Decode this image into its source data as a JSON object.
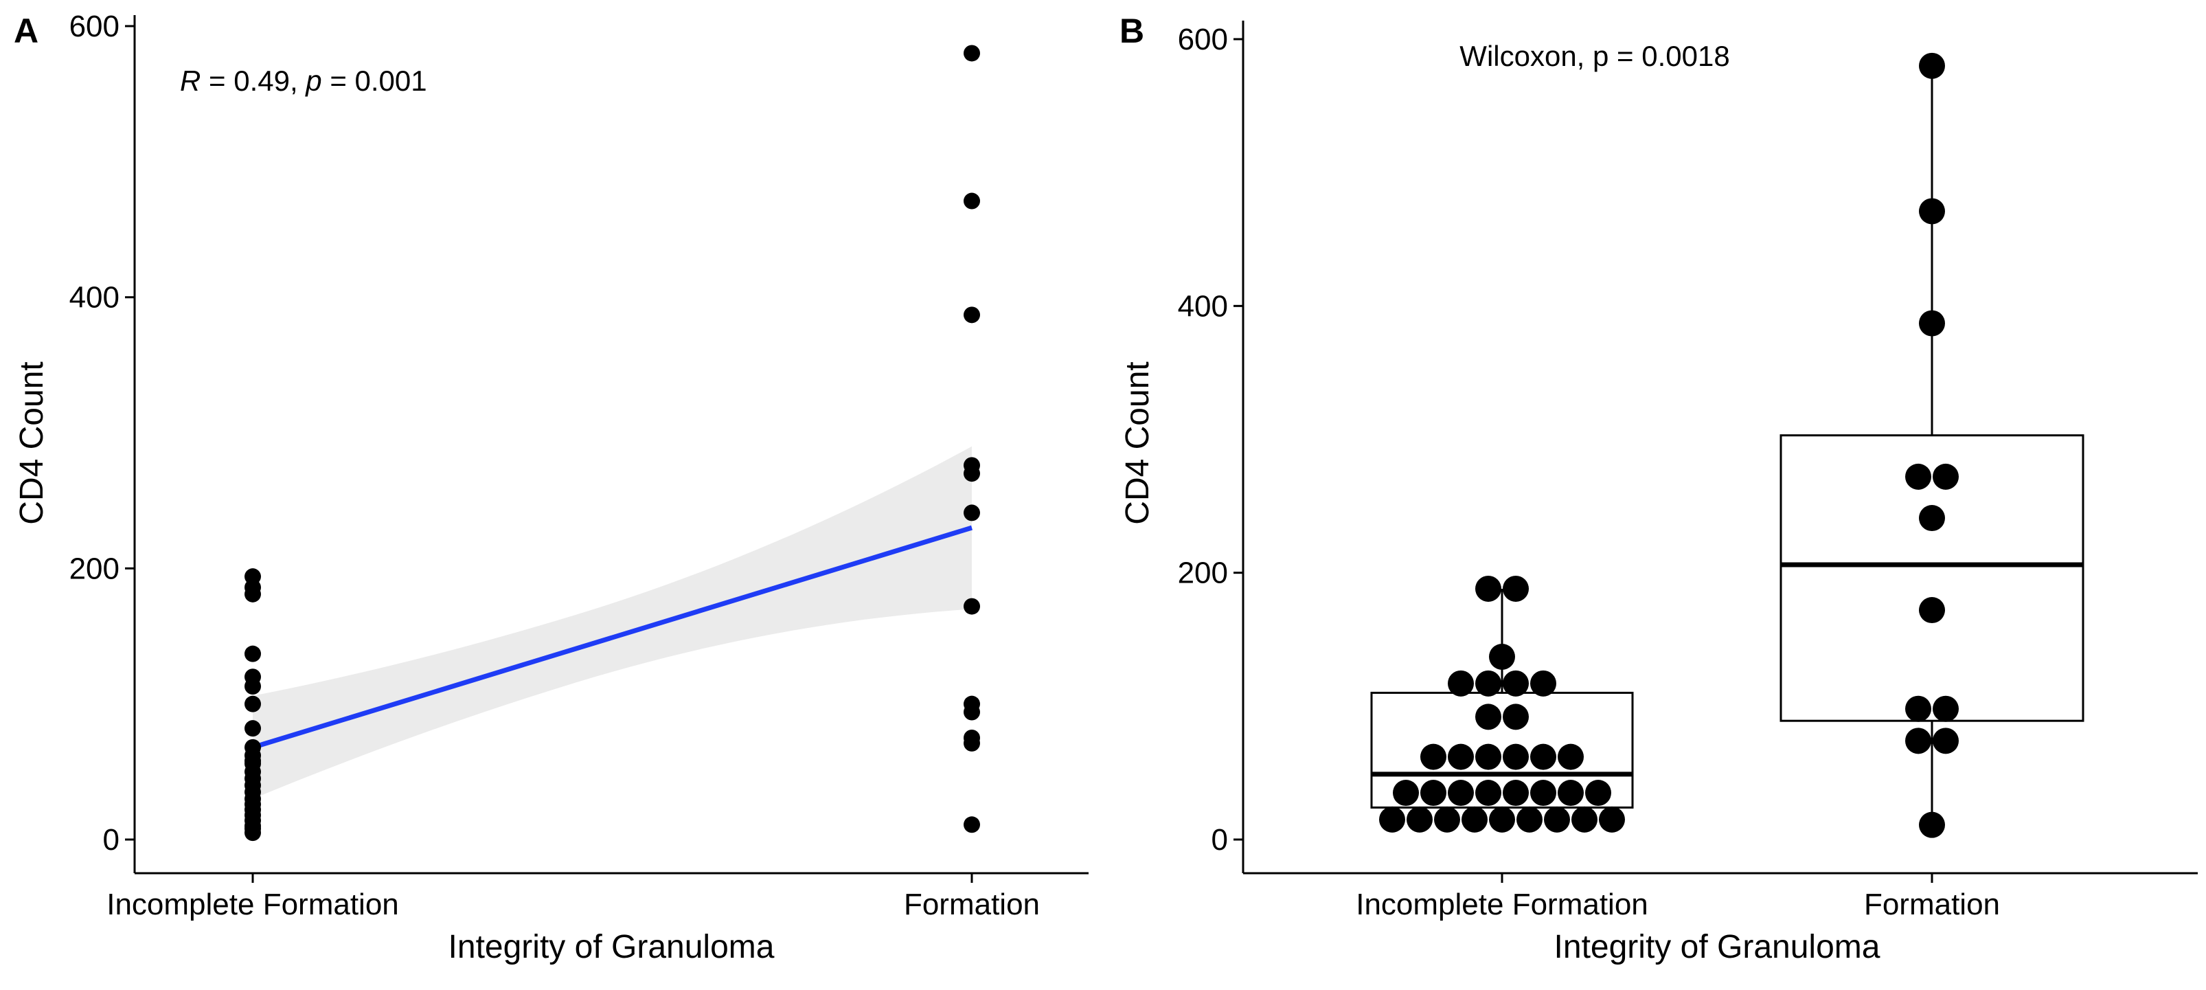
{
  "chart_data": [
    {
      "panel_label": "A",
      "type": "scatter",
      "xlabel": "Integrity of Granuloma",
      "ylabel": "CD4 Count",
      "categories": [
        "Incomplete Formation",
        "Formation"
      ],
      "ylim": [
        0,
        600
      ],
      "yticks": [
        0,
        200,
        400,
        600
      ],
      "grid": false,
      "annotation": {
        "r_symbol": "R",
        "r_text": " = 0.49, ",
        "p_symbol": "p",
        "p_text": " = 0.001"
      },
      "series": [
        {
          "name": "Incomplete Formation",
          "x": 0,
          "values": [
            194,
            186,
            181,
            137,
            120,
            113,
            100,
            82,
            68,
            62,
            58,
            56,
            50,
            45,
            40,
            35,
            30,
            26,
            22,
            18,
            14,
            10,
            8,
            5
          ]
        },
        {
          "name": "Formation",
          "x": 1,
          "values": [
            580,
            471,
            387,
            276,
            270,
            241,
            172,
            100,
            94,
            75,
            71,
            11
          ]
        }
      ],
      "fit": {
        "color": "#1f3cf5",
        "start": 68,
        "end": 230,
        "ci_lower": [
          31,
          170
        ],
        "ci_upper": [
          107,
          290
        ],
        "ci_color": "#ebebeb"
      }
    },
    {
      "panel_label": "B",
      "type": "box",
      "xlabel": "Integrity of Granuloma",
      "ylabel": "CD4 Count",
      "categories": [
        "Incomplete Formation",
        "Formation"
      ],
      "ylim": [
        0,
        600
      ],
      "yticks": [
        0,
        200,
        400,
        600
      ],
      "grid": false,
      "annotation": "Wilcoxon, p = 0.0018",
      "boxes": [
        {
          "name": "Incomplete Formation",
          "q1": 24,
          "median": 49,
          "q3": 110,
          "whisker_low": 15,
          "whisker_high": 188
        },
        {
          "name": "Formation",
          "q1": 89,
          "median": 206,
          "q3": 303,
          "whisker_low": 11,
          "whisker_high": 580
        }
      ],
      "dots": [
        {
          "group": 0,
          "rows": [
            {
              "y": 188,
              "count": 2
            },
            {
              "y": 137,
              "count": 1
            },
            {
              "y": 117,
              "count": 4
            },
            {
              "y": 92,
              "count": 2
            },
            {
              "y": 62,
              "count": 6
            },
            {
              "y": 35,
              "count": 8
            },
            {
              "y": 15,
              "count": 9
            }
          ]
        },
        {
          "group": 1,
          "rows": [
            {
              "y": 580,
              "count": 1
            },
            {
              "y": 471,
              "count": 1
            },
            {
              "y": 387,
              "count": 1
            },
            {
              "y": 272,
              "count": 2
            },
            {
              "y": 241,
              "count": 1
            },
            {
              "y": 172,
              "count": 1
            },
            {
              "y": 98,
              "count": 2
            },
            {
              "y": 74,
              "count": 2
            },
            {
              "y": 11,
              "count": 1
            }
          ]
        }
      ]
    }
  ]
}
